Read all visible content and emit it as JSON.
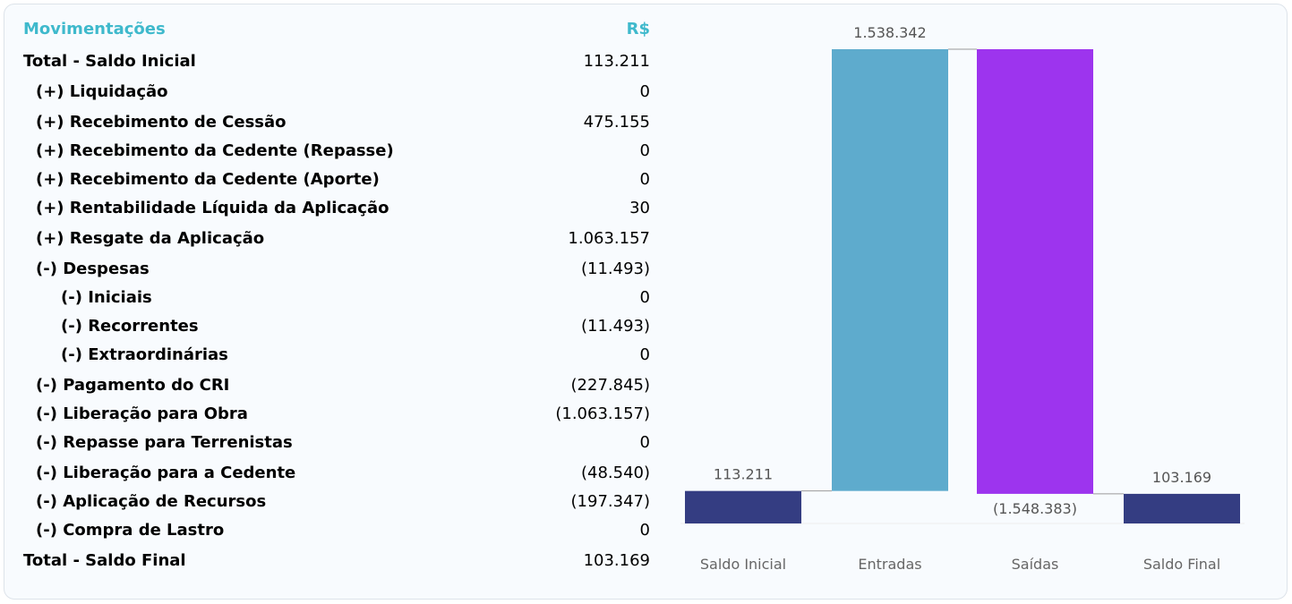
{
  "table": {
    "header": {
      "label": "Movimentações",
      "value": "R$"
    },
    "rows": [
      {
        "label": "Total - Saldo Inicial",
        "value": "113.211",
        "indent": 0
      },
      {
        "label": "(+) Liquidação",
        "value": "0",
        "indent": 1
      },
      {
        "label": "(+) Recebimento de Cessão",
        "value": "475.155",
        "indent": 1
      },
      {
        "label": "(+) Recebimento da Cedente (Repasse)",
        "value": "0",
        "indent": 1
      },
      {
        "label": "(+) Recebimento da Cedente (Aporte)",
        "value": "0",
        "indent": 1
      },
      {
        "label": "(+) Rentabilidade Líquida da Aplicação",
        "value": "30",
        "indent": 1
      },
      {
        "label": "(+) Resgate da Aplicação",
        "value": "1.063.157",
        "indent": 1
      },
      {
        "label": "(-) Despesas",
        "value": "(11.493)",
        "indent": 1
      },
      {
        "label": "(-) Iniciais",
        "value": "0",
        "indent": 2
      },
      {
        "label": "(-) Recorrentes",
        "value": "(11.493)",
        "indent": 2
      },
      {
        "label": "(-) Extraordinárias",
        "value": "0",
        "indent": 2
      },
      {
        "label": "(-) Pagamento do CRI",
        "value": "(227.845)",
        "indent": 1
      },
      {
        "label": "(-) Liberação para Obra",
        "value": "(1.063.157)",
        "indent": 1
      },
      {
        "label": "(-) Repasse para Terrenistas",
        "value": "0",
        "indent": 1
      },
      {
        "label": "(-) Liberação para a Cedente",
        "value": "(48.540)",
        "indent": 1
      },
      {
        "label": "(-) Aplicação de Recursos",
        "value": "(197.347)",
        "indent": 1
      },
      {
        "label": "(-) Compra de Lastro",
        "value": "0",
        "indent": 1
      },
      {
        "label": "Total - Saldo Final",
        "value": "103.169",
        "indent": 0
      }
    ]
  },
  "chart_data": {
    "type": "bar",
    "subtype": "waterfall",
    "categories": [
      "Saldo Inicial",
      "Entradas",
      "Saídas",
      "Saldo Final"
    ],
    "values": [
      113211,
      1538342,
      -1548383,
      103169
    ],
    "data_labels": [
      "113.211",
      "1.538.342",
      "(1.548.383)",
      "103.169"
    ],
    "kinds": [
      "total",
      "increase",
      "decrease",
      "total"
    ],
    "colors": {
      "total": "#343d82",
      "increase": "#5eabcd",
      "decrease": "#9d34ee",
      "connector": "#9a9a9a",
      "axis_label": "#666666"
    },
    "grid": false,
    "legend": "none"
  }
}
